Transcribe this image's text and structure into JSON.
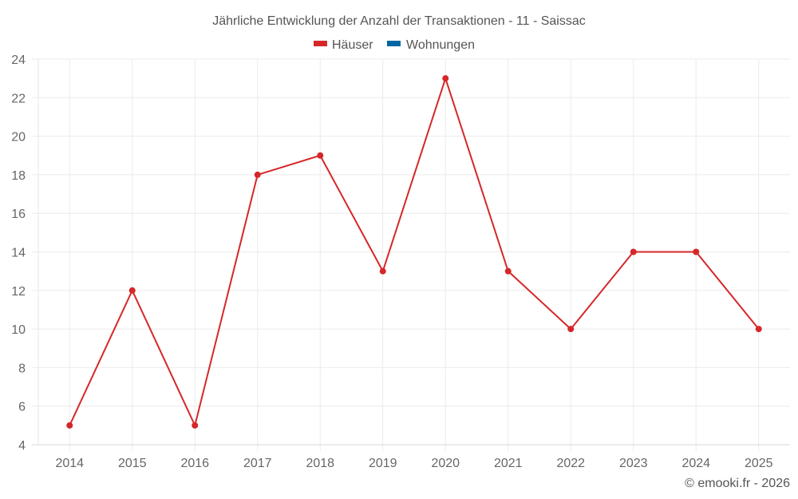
{
  "chart_data": {
    "type": "line",
    "title": "Jährliche Entwicklung der Anzahl der Transaktionen - 11 - Saissac",
    "xlabel": "",
    "ylabel": "",
    "categories": [
      "2014",
      "2015",
      "2016",
      "2017",
      "2018",
      "2019",
      "2020",
      "2021",
      "2022",
      "2023",
      "2024",
      "2025"
    ],
    "series": [
      {
        "name": "Häuser",
        "color": "#d62728",
        "values": [
          5,
          12,
          5,
          18,
          19,
          13,
          23,
          13,
          10,
          14,
          14,
          10
        ]
      },
      {
        "name": "Wohnungen",
        "color": "#0066a4",
        "values": []
      }
    ],
    "ylim": [
      4,
      24
    ],
    "yticks": [
      4,
      6,
      8,
      10,
      12,
      14,
      16,
      18,
      20,
      22,
      24
    ],
    "grid": true,
    "legend_position": "top"
  },
  "title": "Jährliche Entwicklung der Anzahl der Transaktionen - 11 - Saissac",
  "legend": [
    {
      "label": "Häuser",
      "color": "#d62728"
    },
    {
      "label": "Wohnungen",
      "color": "#0066a4"
    }
  ],
  "credit": "© emooki.fr - 2026"
}
